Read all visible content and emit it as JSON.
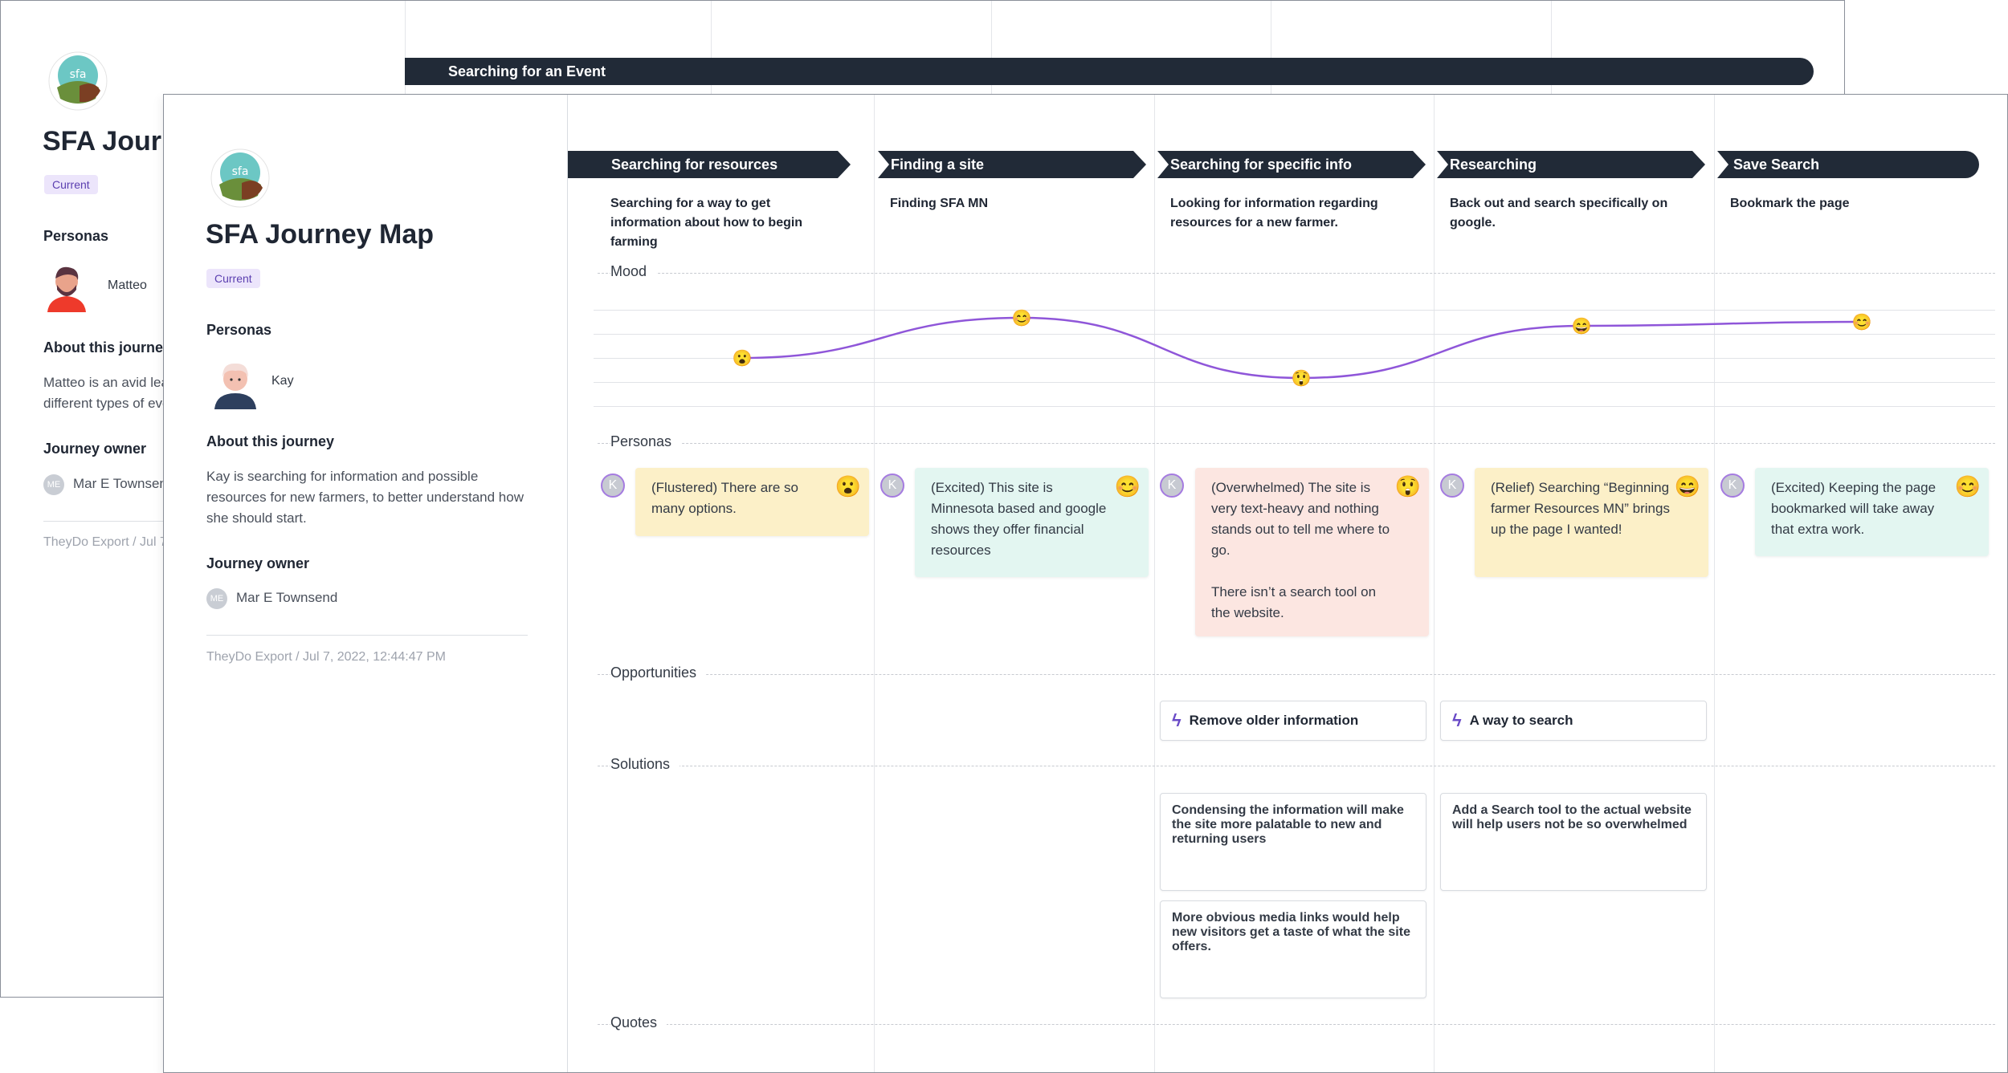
{
  "back": {
    "title": "SFA Journey Map",
    "badge": "Current",
    "personas_heading": "Personas",
    "persona_name": "Matteo",
    "about_heading": "About this journey",
    "about_text": "Matteo is an avid learner who wants to explore different types of events.",
    "owner_heading": "Journey owner",
    "owner_initials": "ME",
    "owner_name": "Mar E Townsend",
    "export": "TheyDo Export / Jul 7, 2022",
    "stage": "Searching for an Event"
  },
  "front": {
    "logo_text": "sfa",
    "title": "SFA Journey Map",
    "badge": "Current",
    "personas_heading": "Personas",
    "persona_name": "Kay",
    "about_heading": "About this journey",
    "about_text": "Kay is searching for information and possible resources for new farmers, to better understand how she should start.",
    "owner_heading": "Journey owner",
    "owner_initials": "ME",
    "owner_name": "Mar E Townsend",
    "export": "TheyDo Export / Jul 7, 2022, 12:44:47 PM"
  },
  "map": {
    "steps": [
      {
        "title": "Searching for resources",
        "desc": "Searching for a way to get information about how to begin farming",
        "mood": 3,
        "mood_emoji": "😮",
        "card": {
          "text": "(Flustered) There are so many options.",
          "emoji": "😮",
          "color": "#fcf0c8"
        }
      },
      {
        "title": "Finding a site",
        "desc": "Finding SFA MN",
        "mood": 4,
        "mood_emoji": "😊",
        "card": {
          "text": "(Excited) This site is Minnesota based and google shows they offer financial resources",
          "emoji": "😊",
          "color": "#e3f6f1"
        }
      },
      {
        "title": "Searching for specific info",
        "desc": "Looking for information regarding resources for a new farmer.",
        "mood": 2.5,
        "mood_emoji": "😲",
        "card": {
          "text": "(Overwhelmed) The site is very text-heavy and nothing stands out to tell me where to go.",
          "text2": "There isn’t a search tool on the website.",
          "emoji": "😲",
          "color": "#fce6e1"
        }
      },
      {
        "title": "Researching",
        "desc": "Back out and search specifically on google.",
        "mood": 3.8,
        "mood_emoji": "😄",
        "card": {
          "text": "(Relief) Searching “Beginning farmer Resources MN” brings up the page I wanted!",
          "emoji": "😄",
          "color": "#fcf0c8"
        }
      },
      {
        "title": "Save Search",
        "desc": "Bookmark the page",
        "mood": 3.9,
        "mood_emoji": "😊",
        "card": {
          "text": "(Excited) Keeping the page bookmarked will take away that extra work.",
          "emoji": "😊",
          "color": "#e3f6f1"
        }
      }
    ],
    "rows": {
      "mood": "Mood",
      "personas": "Personas",
      "opportunities": "Opportunities",
      "solutions": "Solutions",
      "quotes": "Quotes"
    },
    "persona_initial": "K",
    "opportunities": [
      "Remove older information",
      "A way to search"
    ],
    "solutions": [
      "Condensing the information will make the site more palatable to new and returning users",
      "More obvious media links would help new visitors get a taste of what the site offers.",
      "Add a Search tool to the actual website will help users not be so overwhelmed"
    ],
    "colors": {
      "mood_line": "#8f56d9",
      "stage": "#212a37",
      "accent": "#6a4bc7"
    }
  }
}
